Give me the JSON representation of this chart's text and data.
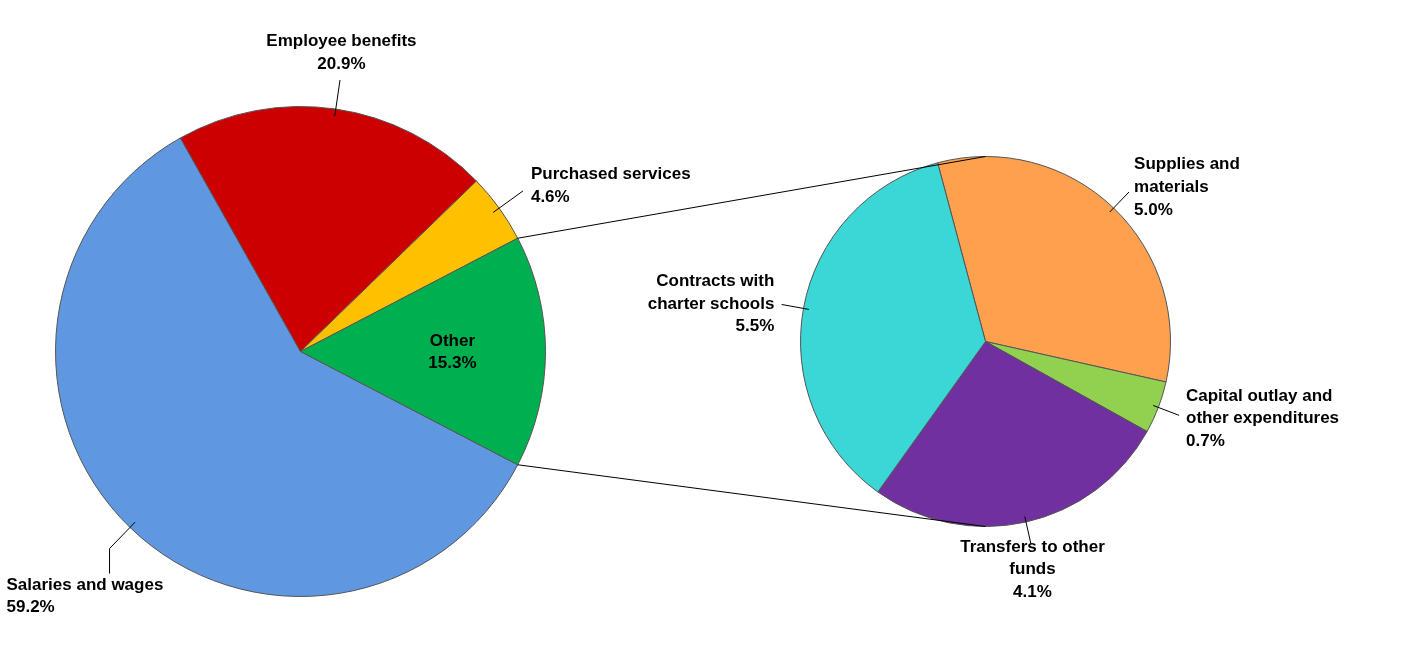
{
  "chart_data": [
    {
      "type": "pie",
      "categories": [
        "Salaries and wages",
        "Employee benefits",
        "Purchased services",
        "Other"
      ],
      "values": [
        59.2,
        20.9,
        4.6,
        15.3
      ],
      "colors": [
        "#5f98e0",
        "#cc0000",
        "#ffc000",
        "#00b050"
      ],
      "value_labels": [
        "59.2%",
        "20.9%",
        "4.6%",
        "15.3%"
      ]
    },
    {
      "type": "pie",
      "categories": [
        "Supplies and materials",
        "Capital outlay and other expenditures",
        "Transfers to other funds",
        "Contracts with charter schools"
      ],
      "values": [
        5.0,
        0.7,
        4.1,
        5.5
      ],
      "colors": [
        "#ffa04f",
        "#92d050",
        "#7030a0",
        "#3bd6d6"
      ],
      "value_labels": [
        "5.0%",
        "0.7%",
        "4.1%",
        "5.5%"
      ]
    }
  ]
}
